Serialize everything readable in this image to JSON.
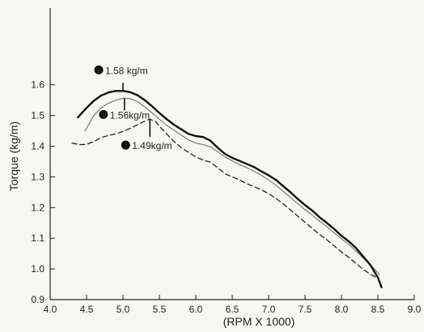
{
  "chart_data": {
    "type": "line",
    "xlabel": "(RPM X 1000)",
    "ylabel": "Torque (kg/m)",
    "xlim": [
      4.0,
      9.0
    ],
    "ylim": [
      0.9,
      1.85
    ],
    "x_ticks": [
      4.0,
      4.5,
      5.0,
      5.5,
      6.0,
      6.5,
      7.0,
      7.5,
      8.0,
      8.5,
      9.0
    ],
    "x_tick_labels": [
      "4.0",
      "4.5",
      "5.0",
      "5.5",
      "6.0",
      "6.5",
      "7.0",
      "7.5",
      "8.0",
      "8.5",
      "9.0"
    ],
    "y_ticks": [
      0.9,
      1.0,
      1.1,
      1.2,
      1.3,
      1.4,
      1.5,
      1.6
    ],
    "y_tick_labels": [
      "0.9",
      "1.0",
      "1.1",
      "1.2",
      "1.3",
      "1.4",
      "1.5",
      "1.6"
    ],
    "grid": false,
    "series": [
      {
        "id": "1",
        "style": "solid-thin",
        "color": "#777777",
        "x": [
          4.48,
          4.6,
          4.7,
          4.8,
          4.9,
          5.0,
          5.1,
          5.2,
          5.3,
          5.4,
          5.5,
          5.6,
          5.7,
          5.8,
          5.9,
          6.0,
          6.1,
          6.2,
          6.3,
          6.4,
          6.5,
          6.6,
          6.7,
          6.8,
          6.9,
          7.0,
          7.1,
          7.2,
          7.3,
          7.4,
          7.5,
          7.6,
          7.7,
          7.8,
          7.9,
          8.0,
          8.1,
          8.2,
          8.3,
          8.4,
          8.5,
          8.52
        ],
        "y": [
          1.45,
          1.5,
          1.525,
          1.54,
          1.55,
          1.556,
          1.555,
          1.545,
          1.528,
          1.508,
          1.488,
          1.468,
          1.452,
          1.436,
          1.42,
          1.41,
          1.405,
          1.398,
          1.382,
          1.365,
          1.352,
          1.34,
          1.33,
          1.318,
          1.305,
          1.29,
          1.273,
          1.253,
          1.233,
          1.213,
          1.193,
          1.175,
          1.155,
          1.138,
          1.118,
          1.098,
          1.08,
          1.058,
          1.035,
          1.012,
          0.988,
          0.98
        ]
      },
      {
        "id": "2",
        "style": "solid-thick",
        "color": "#111111",
        "x": [
          4.38,
          4.5,
          4.6,
          4.7,
          4.8,
          4.9,
          5.0,
          5.1,
          5.2,
          5.3,
          5.4,
          5.5,
          5.6,
          5.7,
          5.8,
          5.9,
          6.0,
          6.1,
          6.2,
          6.3,
          6.4,
          6.5,
          6.6,
          6.7,
          6.8,
          6.9,
          7.0,
          7.1,
          7.2,
          7.3,
          7.4,
          7.5,
          7.6,
          7.7,
          7.8,
          7.9,
          8.0,
          8.1,
          8.2,
          8.3,
          8.4,
          8.5,
          8.55
        ],
        "y": [
          1.494,
          1.525,
          1.548,
          1.565,
          1.575,
          1.58,
          1.58,
          1.576,
          1.566,
          1.55,
          1.53,
          1.508,
          1.488,
          1.47,
          1.455,
          1.44,
          1.433,
          1.43,
          1.418,
          1.395,
          1.375,
          1.362,
          1.352,
          1.342,
          1.332,
          1.318,
          1.305,
          1.29,
          1.27,
          1.25,
          1.228,
          1.208,
          1.19,
          1.168,
          1.15,
          1.13,
          1.108,
          1.09,
          1.068,
          1.04,
          1.012,
          0.972,
          0.94
        ]
      },
      {
        "id": "3",
        "style": "dashed",
        "color": "#222222",
        "x": [
          4.3,
          4.4,
          4.5,
          4.6,
          4.7,
          4.8,
          4.9,
          5.0,
          5.1,
          5.2,
          5.3,
          5.37,
          5.45,
          5.5,
          5.6,
          5.7,
          5.8,
          5.9,
          6.0,
          6.1,
          6.2,
          6.3,
          6.4,
          6.5,
          6.6,
          6.7,
          6.8,
          6.9,
          7.0,
          7.1,
          7.2,
          7.3,
          7.4,
          7.5,
          7.6,
          7.7,
          7.8,
          7.9,
          8.0,
          8.1,
          8.2,
          8.3,
          8.4,
          8.5
        ],
        "y": [
          1.41,
          1.405,
          1.406,
          1.415,
          1.428,
          1.435,
          1.44,
          1.448,
          1.458,
          1.47,
          1.482,
          1.488,
          1.48,
          1.465,
          1.44,
          1.415,
          1.395,
          1.38,
          1.365,
          1.355,
          1.348,
          1.33,
          1.31,
          1.3,
          1.29,
          1.278,
          1.268,
          1.258,
          1.245,
          1.23,
          1.212,
          1.192,
          1.172,
          1.152,
          1.132,
          1.112,
          1.095,
          1.075,
          1.055,
          1.038,
          1.018,
          0.998,
          0.982,
          0.97
        ]
      }
    ],
    "annotations": [
      {
        "marker": "2",
        "text": "1.58 kg/m",
        "x": 5.0,
        "y": 1.58
      },
      {
        "marker": "1",
        "text": "1.56kg/m",
        "x": 5.02,
        "y": 1.556
      },
      {
        "marker": "3",
        "text": "1.49kg/m",
        "x": 5.37,
        "y": 1.488
      }
    ]
  }
}
